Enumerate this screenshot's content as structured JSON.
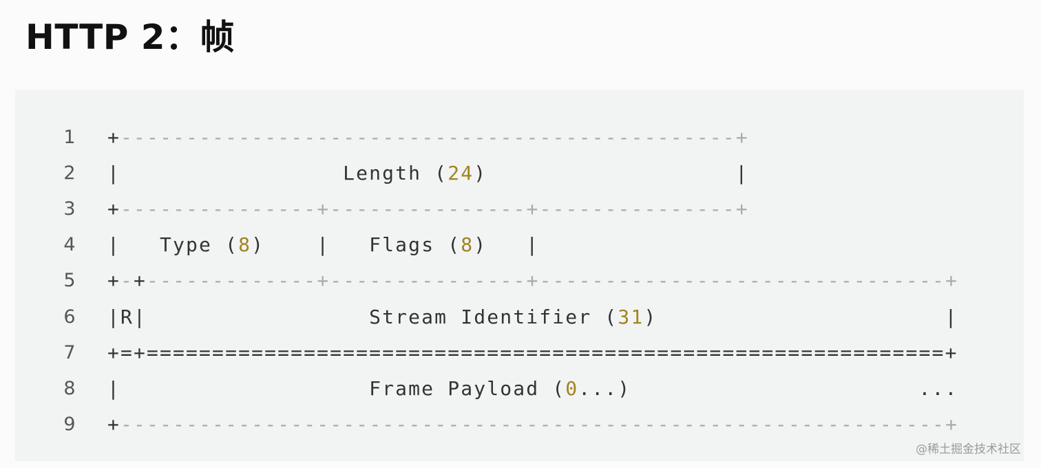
{
  "title": "HTTP 2：帧",
  "code": {
    "lines": [
      {
        "n": "1",
        "text": "+-----------------------------------------------+"
      },
      {
        "n": "2",
        "text": "|                 Length (24)                   |"
      },
      {
        "n": "3",
        "text": "+---------------+---------------+---------------+"
      },
      {
        "n": "4",
        "text": "|   Type (8)    |   Flags (8)   |"
      },
      {
        "n": "5",
        "text": "+-+-------------+---------------+-------------------------------+"
      },
      {
        "n": "6",
        "text": "|R|                 Stream Identifier (31)                      |"
      },
      {
        "n": "7",
        "text": "+=+=============================================================+"
      },
      {
        "n": "8",
        "text": "|                   Frame Payload (0...)                      ..."
      },
      {
        "n": "9",
        "text": "+---------------------------------------------------------------+"
      }
    ]
  },
  "watermark": "@稀土掘金技术社区",
  "colors": {
    "number": "#a08420",
    "dash": "#aaaaaa",
    "text": "#333333",
    "card": "#f2f3f3"
  }
}
